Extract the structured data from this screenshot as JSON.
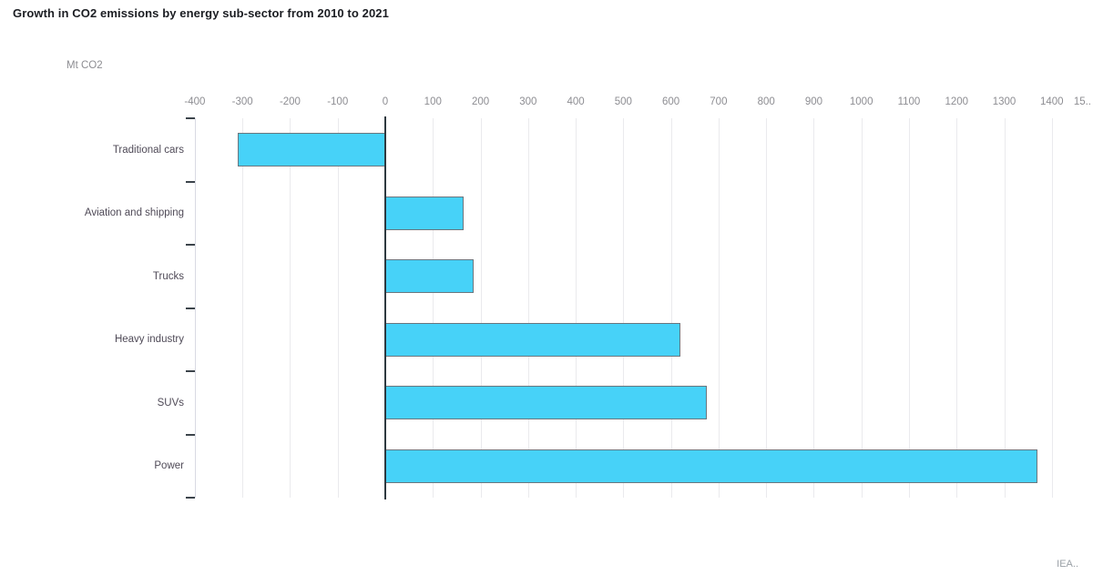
{
  "page": {
    "source_label": "IEA.."
  },
  "chart_data": {
    "type": "bar",
    "orientation": "horizontal",
    "title": "Growth in CO2 emissions by energy sub-sector from 2010 to 2021",
    "unit_label": "Mt CO2",
    "categories": [
      "Traditional cars",
      "Aviation and shipping",
      "Trucks",
      "Heavy industry",
      "SUVs",
      "Power"
    ],
    "values": [
      -310,
      165,
      185,
      620,
      675,
      1370
    ],
    "xlabel": "",
    "ylabel": "Mt CO2",
    "xlim": [
      -400,
      1500
    ],
    "x_tick_values": [
      -400,
      -300,
      -200,
      -100,
      0,
      100,
      200,
      300,
      400,
      500,
      600,
      700,
      800,
      900,
      1000,
      1100,
      1200,
      1300,
      1400,
      1500
    ],
    "x_tick_labels": [
      "-400",
      "-300",
      "-200",
      "-100",
      "0",
      "100",
      "200",
      "300",
      "400",
      "500",
      "600",
      "700",
      "800",
      "900",
      "1000",
      "1100",
      "1200",
      "1300",
      "1400",
      "15.."
    ],
    "grid": true,
    "legend": false,
    "colors": {
      "bar_fill": "#47d2f8",
      "bar_border": "#6b767e",
      "zero_line": "#2e3940",
      "axis_line": "#d9dae3",
      "gridline": "#eaeaed",
      "tick_mark": "#3c444b",
      "tick_label": "#8d8d92",
      "category_label": "#4f4a57",
      "title_color": "#1b1d22",
      "source_color": "#9aa0a6"
    }
  }
}
